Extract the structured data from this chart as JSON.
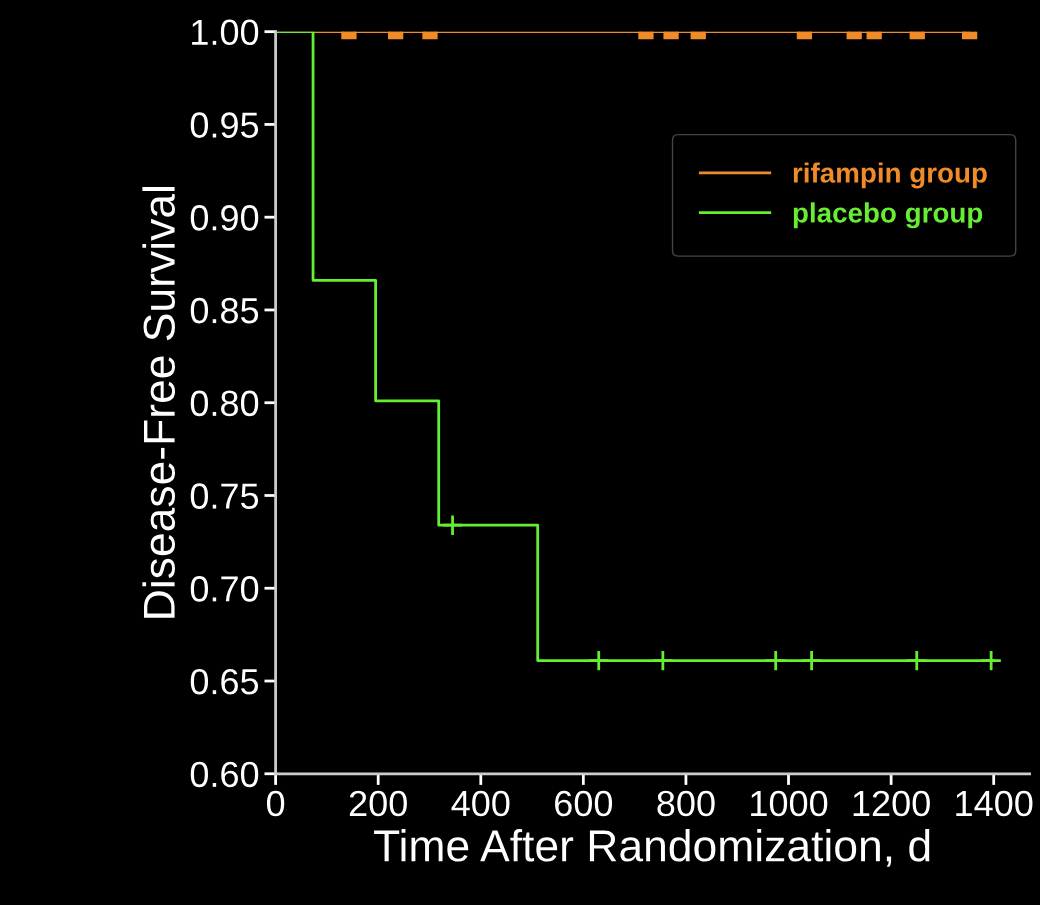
{
  "chart_data": {
    "type": "step",
    "xlabel": "Time After Randomization, d",
    "ylabel": "Disease-Free Survival",
    "xlim": [
      0,
      1470
    ],
    "ylim": [
      0.6,
      1.0
    ],
    "xticks": [
      0,
      200,
      400,
      600,
      800,
      1000,
      1200,
      1400
    ],
    "yticks": [
      {
        "value": 0.6,
        "label": "0.60"
      },
      {
        "value": 0.65,
        "label": "0.65"
      },
      {
        "value": 0.7,
        "label": "0.70"
      },
      {
        "value": 0.75,
        "label": "0.75"
      },
      {
        "value": 0.8,
        "label": "0.80"
      },
      {
        "value": 0.85,
        "label": "0.85"
      },
      {
        "value": 0.9,
        "label": "0.90"
      },
      {
        "value": 0.95,
        "label": "0.95"
      },
      {
        "value": 1.0,
        "label": "1.00"
      }
    ],
    "grid": false,
    "legend": "top right",
    "series": [
      {
        "name": "rifampin group",
        "color": "#f08c28",
        "x": [
          0,
          1353
        ],
        "values": [
          1.0,
          1.0
        ]
      },
      {
        "name": "placebo group",
        "color": "#66ee33",
        "x": [
          0,
          73,
          195,
          318,
          511,
          1400
        ],
        "values": [
          1.0,
          0.866,
          0.801,
          0.734,
          0.661,
          0.661
        ]
      },
      {
        "type": "scatter",
        "marker": "square",
        "color": "#f08c28",
        "x": [
          143,
          234,
          301,
          722,
          771,
          824,
          1031,
          1128,
          1167,
          1251,
          1353
        ],
        "values": [
          1.0,
          1.0,
          1.0,
          1.0,
          1.0,
          1.0,
          1.0,
          1.0,
          1.0,
          1.0,
          1.0
        ]
      },
      {
        "type": "scatter",
        "marker": "cross",
        "color": "#66ee33",
        "x": [
          345,
          630,
          755,
          975,
          1045,
          1250,
          1395
        ],
        "values": [
          0.734,
          0.661,
          0.661,
          0.661,
          0.661,
          0.661,
          0.661
        ]
      }
    ]
  }
}
